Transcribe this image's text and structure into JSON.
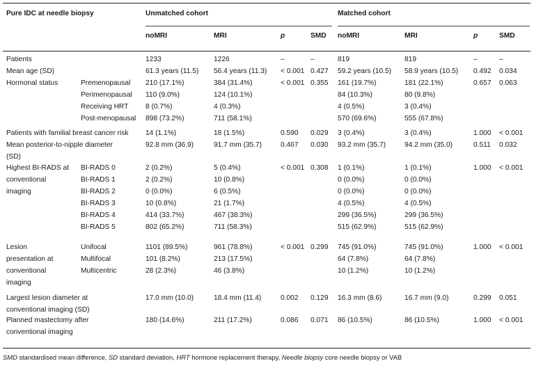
{
  "header": {
    "title": "Pure IDC at needle biopsy",
    "unmatched": "Unmatched cohort",
    "matched": "Matched cohort",
    "cols": [
      "noMRI",
      "MRI",
      "p",
      "SMD",
      "noMRI",
      "MRI",
      "p",
      "SMD"
    ]
  },
  "rows": [
    {
      "l1": [
        "Patients"
      ],
      "l2": "",
      "v": [
        "1233",
        "1226",
        "–",
        "–",
        "819",
        "819",
        "–",
        "–"
      ]
    },
    {
      "l1": [
        "Mean age (SD)"
      ],
      "l2": "",
      "v": [
        "61.3 years (11.5)",
        "56.4 years (11.3)",
        "< 0.001",
        "0.427",
        "59.2 years (10.5)",
        "58.9 years (10.5)",
        "0.492",
        "0.034"
      ]
    },
    {
      "l1": [
        "Hormonal status"
      ],
      "l2": "Premenopausal",
      "v": [
        "210 (17.1%)",
        "384 (31.4%)",
        "< 0.001",
        "0.355",
        "161 (19.7%)",
        "181 (22.1%)",
        "0.657",
        "0.063"
      ]
    },
    {
      "l1": [],
      "l2": "Perimenopausal",
      "v": [
        "110 (9.0%)",
        "124 (10.1%)",
        "",
        "",
        "84 (10.3%)",
        "80 (9.8%)",
        "",
        ""
      ]
    },
    {
      "l1": [],
      "l2": "Receiving HRT",
      "v": [
        "8 (0.7%)",
        "4 (0.3%)",
        "",
        "",
        "4 (0.5%)",
        "3 (0.4%)",
        "",
        ""
      ]
    },
    {
      "l1": [],
      "l2": "Post-menopausal",
      "v": [
        "898 (73.2%)",
        "711 (58.1%)",
        "",
        "",
        "570 (69.6%)",
        "555 (67.8%)",
        "",
        ""
      ]
    },
    {
      "l1": [
        "Patients with familial breast cancer risk"
      ],
      "l2": "",
      "v": [
        "14 (1.1%)",
        "18 (1.5%)",
        "0.590",
        "0.029",
        "3 (0.4%)",
        "3 (0.4%)",
        "1.000",
        "< 0.001"
      ]
    },
    {
      "l1": [
        "Mean posterior-to-nipple diameter",
        "(SD)"
      ],
      "l2": "",
      "v": [
        "92.8 mm (36.9)",
        "91.7 mm (35.7)",
        "0.467",
        "0.030",
        "93.2 mm (35.7)",
        "94.2 mm (35.0)",
        "0.511",
        "0.032"
      ]
    },
    {
      "l1": [
        "Highest BI-RADS at",
        "conventional",
        "imaging"
      ],
      "l2": "BI-RADS 0",
      "v": [
        "2 (0.2%)",
        "5 (0.4%)",
        "< 0.001",
        "0.308",
        "1 (0.1%)",
        "1 (0.1%)",
        "1.000",
        "< 0.001"
      ]
    },
    {
      "l1": [],
      "l2": "BI-RADS 1",
      "v": [
        "2 (0.2%)",
        "10 (0.8%)",
        "",
        "",
        "0 (0.0%)",
        "0 (0.0%)",
        "",
        ""
      ]
    },
    {
      "l1": [],
      "l2": "BI-RADS 2",
      "v": [
        "0 (0.0%)",
        "6 (0.5%)",
        "",
        "",
        "0 (0.0%)",
        "0 (0.0%)",
        "",
        ""
      ]
    },
    {
      "l1": [],
      "l2": "BI-RADS 3",
      "v": [
        "10 (0.8%)",
        "21 (1.7%)",
        "",
        "",
        "4 (0.5%)",
        "4 (0.5%)",
        "",
        ""
      ]
    },
    {
      "l1": [],
      "l2": "BI-RADS 4",
      "v": [
        "414 (33.7%)",
        "467 (38.3%)",
        "",
        "",
        "299 (36.5%)",
        "299 (36.5%)",
        "",
        ""
      ]
    },
    {
      "l1": [],
      "l2": "BI-RADS 5",
      "v": [
        "802 (65.2%)",
        "711 (58.3%)",
        "",
        "",
        "515 (62.9%)",
        "515 (62.9%)",
        "",
        ""
      ]
    },
    {
      "l1": [
        "Lesion",
        "presentation at",
        "conventional",
        "imaging"
      ],
      "l2": "Unifocal",
      "v": [
        "1101 (89.5%)",
        "961 (78.8%)",
        "< 0.001",
        "0.299",
        "745 (91.0%)",
        "745 (91.0%)",
        "1.000",
        "< 0.001"
      ]
    },
    {
      "l1": [],
      "l2": "Multifocal",
      "v": [
        "101 (8.2%)",
        "213 (17.5%)",
        "",
        "",
        "64 (7.8%)",
        "64 (7.8%)",
        "",
        ""
      ]
    },
    {
      "l1": [],
      "l2": "Multicentric",
      "v": [
        "28 (2.3%)",
        "46 (3.8%)",
        "",
        "",
        "10 (1.2%)",
        "10 (1.2%)",
        "",
        ""
      ]
    },
    {
      "l1": [
        "Largest lesion diameter at",
        "conventional imaging (SD)"
      ],
      "l2": "",
      "v": [
        "17.0 mm (10.0)",
        "18.4 mm (11.4)",
        "0.002",
        "0.129",
        "16.3 mm (8.6)",
        "16.7 mm (9.0)",
        "0.299",
        "0.051"
      ]
    },
    {
      "l1": [
        "Planned mastectomy after",
        "conventional imaging"
      ],
      "l2": "",
      "v": [
        "180 (14.6%)",
        "211 (17.2%)",
        "0.086",
        "0.071",
        "86 (10.5%)",
        "86 (10.5%)",
        "1.000",
        "< 0.001"
      ]
    }
  ],
  "footnote": [
    {
      "t": "SMD",
      "i": true
    },
    {
      "t": " standardised mean difference, ",
      "i": false
    },
    {
      "t": "SD",
      "i": true
    },
    {
      "t": " standard deviation, ",
      "i": false
    },
    {
      "t": "HRT",
      "i": true
    },
    {
      "t": " hormone replacement therapy, ",
      "i": false
    },
    {
      "t": "Needle biopsy",
      "i": true
    },
    {
      "t": " core needle biopsy or VAB",
      "i": false
    }
  ]
}
